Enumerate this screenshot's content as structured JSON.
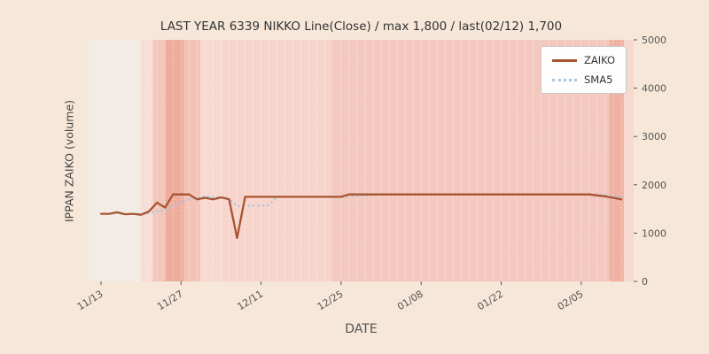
{
  "figure": {
    "title": "LAST YEAR 6339 NIKKO Line(Close) / max 1,800 / last(02/12) 1,700",
    "xlabel": "DATE",
    "ylabel": "IPPAN ZAIKO (volume)",
    "colors": {
      "figure_bg": "#f6e7d8",
      "plot_bg": "#f3ede7",
      "grid": "#ffffff",
      "tick_label": "#555555",
      "title": "#333333"
    }
  },
  "legend": {
    "position": "upper right",
    "items": [
      {
        "label": "ZAIKO",
        "color": "#a85432",
        "style": "solid"
      },
      {
        "label": "SMA5",
        "color": "#a9c5e2",
        "style": "dotted"
      }
    ]
  },
  "chart_data": {
    "type": "line",
    "title": "LAST YEAR 6339 NIKKO Line(Close) / max 1,800 / last(02/12) 1,700",
    "xlabel": "DATE",
    "ylabel": "IPPAN ZAIKO (volume)",
    "ylim": [
      0,
      5000
    ],
    "yticks": [
      0,
      1000,
      2000,
      3000,
      4000,
      5000
    ],
    "yaxis_side": "right",
    "grid": "vertical-daily-dashed",
    "max_value": 1800,
    "last_date": "02/12",
    "last_value": 1700,
    "xtick_labels": [
      "11/13",
      "11/27",
      "12/11",
      "12/25",
      "01/08",
      "01/22",
      "02/05"
    ],
    "xtick_indices": [
      0,
      10,
      20,
      30,
      40,
      50,
      60
    ],
    "dates": [
      "11/13",
      "11/14",
      "11/15",
      "11/16",
      "11/17",
      "11/20",
      "11/21",
      "11/22",
      "11/23",
      "11/24",
      "11/27",
      "11/28",
      "11/29",
      "11/30",
      "12/01",
      "12/04",
      "12/05",
      "12/06",
      "12/07",
      "12/08",
      "12/11",
      "12/12",
      "12/13",
      "12/14",
      "12/15",
      "12/18",
      "12/19",
      "12/20",
      "12/21",
      "12/22",
      "12/25",
      "12/26",
      "12/27",
      "12/28",
      "12/29",
      "01/01",
      "01/02",
      "01/03",
      "01/04",
      "01/05",
      "01/08",
      "01/09",
      "01/10",
      "01/11",
      "01/12",
      "01/15",
      "01/16",
      "01/17",
      "01/18",
      "01/19",
      "01/22",
      "01/23",
      "01/24",
      "01/25",
      "01/26",
      "01/29",
      "01/30",
      "01/31",
      "02/01",
      "02/02",
      "02/05",
      "02/06",
      "02/07",
      "02/08",
      "02/09",
      "02/12"
    ],
    "series": [
      {
        "name": "ZAIKO",
        "style": "solid",
        "color": "#a85432",
        "values": [
          1400,
          1400,
          1430,
          1390,
          1400,
          1380,
          1450,
          1630,
          1530,
          1800,
          1800,
          1800,
          1700,
          1730,
          1700,
          1740,
          1700,
          900,
          1750,
          1750,
          1750,
          1750,
          1750,
          1750,
          1750,
          1750,
          1750,
          1750,
          1750,
          1750,
          1750,
          1800,
          1800,
          1800,
          1800,
          1800,
          1800,
          1800,
          1800,
          1800,
          1800,
          1800,
          1800,
          1800,
          1800,
          1800,
          1800,
          1800,
          1800,
          1800,
          1800,
          1800,
          1800,
          1800,
          1800,
          1800,
          1800,
          1800,
          1800,
          1800,
          1800,
          1800,
          1780,
          1760,
          1730,
          1700
        ]
      },
      {
        "name": "SMA5",
        "style": "dotted",
        "color": "#a9c5e2",
        "derived_from": "5-period moving average of ZAIKO",
        "values": [
          null,
          null,
          null,
          null,
          1404,
          1400,
          1410,
          1450,
          1478,
          1558,
          1642,
          1712,
          1726,
          1766,
          1746,
          1734,
          1714,
          1554,
          1558,
          1568,
          1570,
          1580,
          1750,
          1750,
          1750,
          1750,
          1750,
          1750,
          1750,
          1750,
          1750,
          1760,
          1770,
          1780,
          1790,
          1800,
          1800,
          1800,
          1800,
          1800,
          1800,
          1800,
          1800,
          1800,
          1800,
          1800,
          1800,
          1800,
          1800,
          1800,
          1800,
          1800,
          1800,
          1800,
          1800,
          1800,
          1800,
          1800,
          1800,
          1800,
          1800,
          1800,
          1796,
          1788,
          1774,
          1754
        ]
      }
    ],
    "shade_bands": [
      {
        "start": 0.0,
        "end": 0.095,
        "color": "#f2ece6"
      },
      {
        "start": 0.095,
        "end": 0.118,
        "color": "#f7ddd5"
      },
      {
        "start": 0.118,
        "end": 0.14,
        "color": "#f3c6ba"
      },
      {
        "start": 0.14,
        "end": 0.175,
        "color": "#eead9c"
      },
      {
        "start": 0.175,
        "end": 0.205,
        "color": "#f2c3b6"
      },
      {
        "start": 0.205,
        "end": 0.245,
        "color": "#f7d9d0"
      },
      {
        "start": 0.245,
        "end": 0.445,
        "color": "#f7d5cc"
      },
      {
        "start": 0.445,
        "end": 0.955,
        "color": "#f3c8be"
      },
      {
        "start": 0.955,
        "end": 0.982,
        "color": "#efb2a2"
      },
      {
        "start": 0.982,
        "end": 1.0,
        "color": "#f7d9d0"
      }
    ]
  }
}
